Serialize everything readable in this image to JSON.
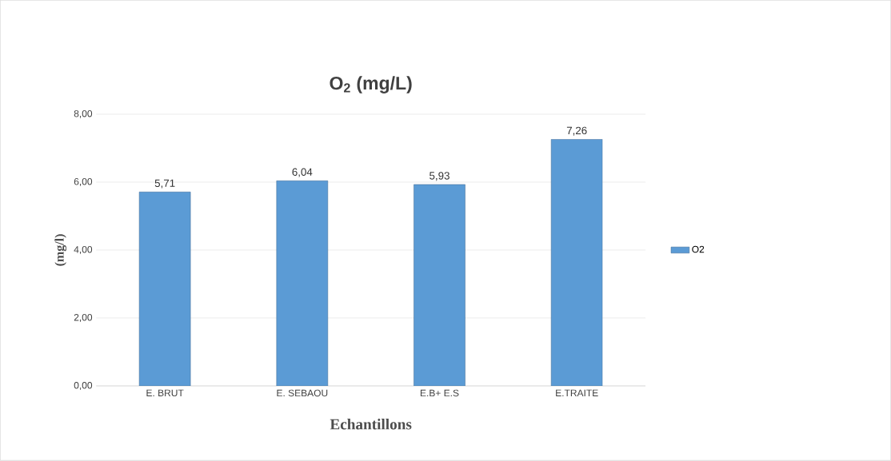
{
  "chart_data": {
    "type": "bar",
    "title": "O$_{2}$ (mg/L)",
    "xlabel": "Echantillons",
    "ylabel": "(mg/l)",
    "categories": [
      "E. BRUT",
      "E. SEBAOU",
      "E.B+ E.S",
      "E.TRAITE"
    ],
    "series": [
      {
        "name": "O2",
        "color": "#5b9bd5",
        "values": [
          5.71,
          6.04,
          5.93,
          7.26
        ],
        "value_labels": [
          "5,71",
          "6,04",
          "5,93",
          "7,26"
        ]
      }
    ],
    "ylim": [
      0,
      8
    ],
    "yticks": [
      {
        "value": 0,
        "label": "0,00"
      },
      {
        "value": 2,
        "label": "2,00"
      },
      {
        "value": 4,
        "label": "4,00"
      },
      {
        "value": 6,
        "label": "6,00"
      },
      {
        "value": 8,
        "label": "8,00"
      }
    ],
    "grid": "y",
    "legend": "right"
  }
}
